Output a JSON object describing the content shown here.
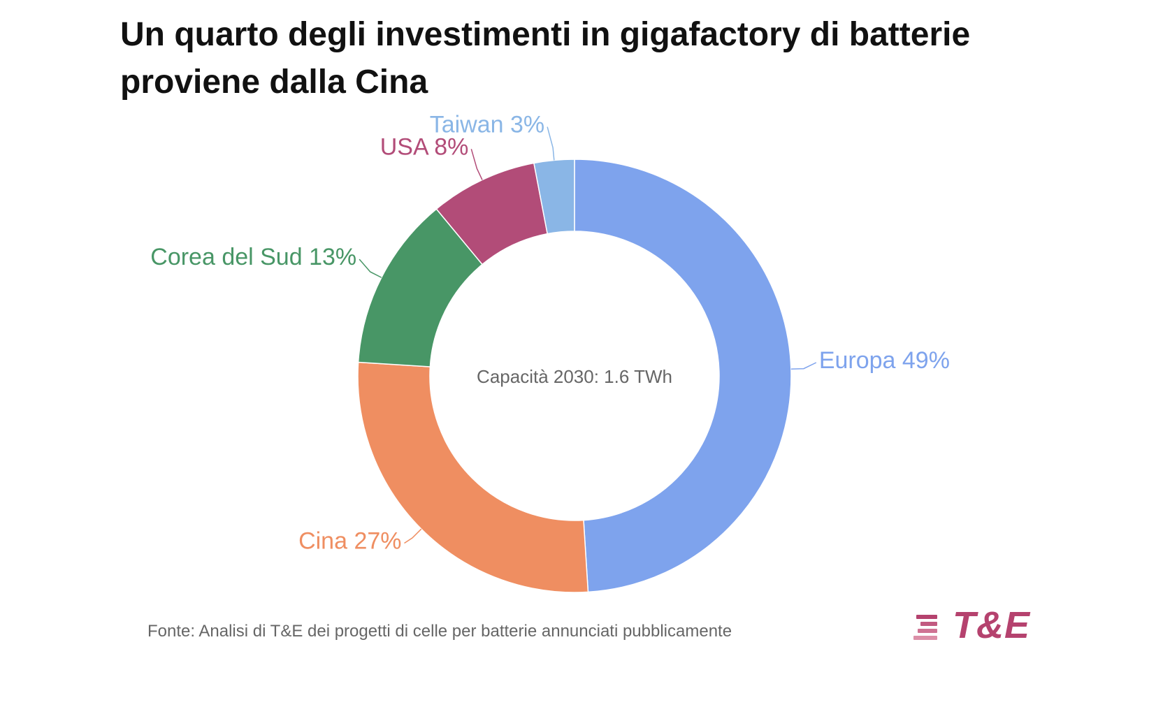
{
  "title": "Un quarto degli investimenti in gigafactory di batterie proviene dalla Cina",
  "center_label": "Capacità 2030: 1.6 TWh",
  "source": "Fonte: Analisi di T&E dei progetti di celle per batterie annunciati pubblicamente",
  "logo": {
    "text": "T&E",
    "color": "#b5426e"
  },
  "chart_data": {
    "type": "pie",
    "donut": true,
    "title": "Un quarto degli investimenti in gigafactory di batterie proviene dalla Cina",
    "center_text": "Capacità 2030: 1.6 TWh",
    "slices": [
      {
        "label": "Europa",
        "value": 49,
        "display": "Europa 49%",
        "color": "#7ea3ed"
      },
      {
        "label": "Cina",
        "value": 27,
        "display": "Cina 27%",
        "color": "#ef8e61"
      },
      {
        "label": "Corea del Sud",
        "value": 13,
        "display": "Corea del Sud 13%",
        "color": "#489666"
      },
      {
        "label": "USA",
        "value": 8,
        "display": "USA 8%",
        "color": "#b24c78"
      },
      {
        "label": "Taiwan",
        "value": 3,
        "display": "Taiwan 3%",
        "color": "#8ab6e6"
      }
    ],
    "direction": "clockwise",
    "start": "top"
  }
}
